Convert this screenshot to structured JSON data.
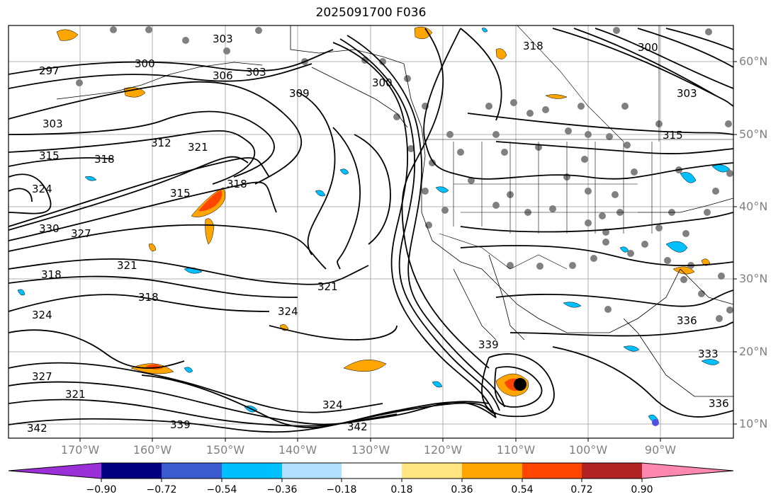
{
  "title": "2025091700 F036",
  "lat_labels": [
    "60°N",
    "50°N",
    "40°N",
    "30°N",
    "20°N",
    "10°N"
  ],
  "lon_labels": [
    "170°W",
    "160°W",
    "150°W",
    "140°W",
    "130°W",
    "120°W",
    "110°W",
    "100°W",
    "90°W"
  ],
  "contour_labels": [
    "297",
    "300",
    "303",
    "306",
    "303",
    "300",
    "309",
    "303",
    "312",
    "315",
    "318",
    "321",
    "315",
    "318",
    "324",
    "327",
    "330",
    "318",
    "321",
    "318",
    "324",
    "321",
    "324",
    "327",
    "321",
    "339",
    "342",
    "324",
    "342",
    "339",
    "318",
    "315",
    "303",
    "300",
    "336",
    "336",
    "333"
  ],
  "colorbar": {
    "ticks": [
      "−0.90",
      "−0.72",
      "−0.54",
      "−0.36",
      "−0.18",
      "0.18",
      "0.36",
      "0.54",
      "0.72",
      "0.90"
    ],
    "colors": [
      "#9b30d9",
      "#000080",
      "#3a5bd0",
      "#00bfff",
      "#b0e0ff",
      "#ffffff",
      "#ffe680",
      "#ffa500",
      "#ff4500",
      "#b22222",
      "#ff88b0"
    ]
  }
}
